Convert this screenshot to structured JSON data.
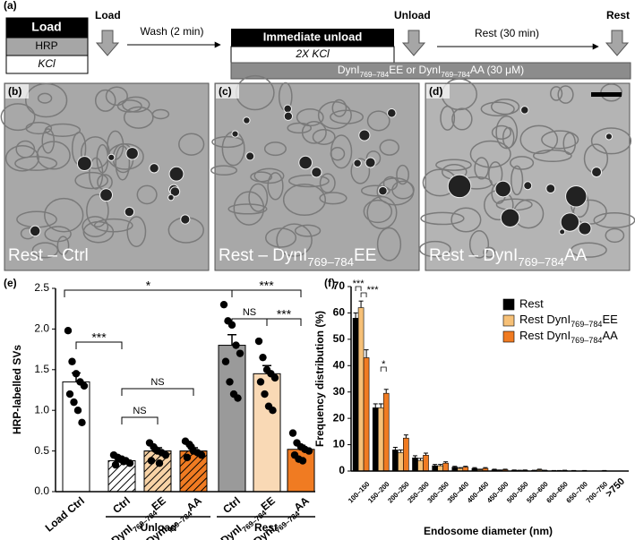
{
  "schematic": {
    "label": "(a)",
    "load_box": {
      "title": "Load",
      "rows": [
        "HRP",
        "KCl"
      ]
    },
    "load_step": "Load",
    "wash": "Wash (2 min)",
    "unload_box": {
      "title": "Immediate unload",
      "rows": [
        "2X KCl"
      ]
    },
    "unload_step": "Unload",
    "rest": "Rest (30 min)",
    "rest_step": "Rest",
    "treatment": "DynI769–784EE or DynI769–784AA (30 μM)"
  },
  "micrographs": [
    {
      "label": "(b)",
      "caption": "Rest – Ctrl"
    },
    {
      "label": "(c)",
      "caption": "Rest – DynI769–784EE"
    },
    {
      "label": "(d)",
      "caption": "Rest – DynI769–784AA"
    }
  ],
  "chart_data": [
    {
      "type": "bar",
      "label": "(e)",
      "ylabel": "HRP-labelled SVs",
      "categories": [
        "Load Ctrl",
        "Ctrl",
        "DynI769–784EE",
        "DynI769–784AA",
        "Ctrl",
        "DynI769–784EE",
        "DynI769–784AA"
      ],
      "colors": [
        "#ffffff",
        "#ffffff",
        "#f8d3a6",
        "#f07b22",
        "#9a9a9a",
        "#f9d9b5",
        "#f07b22"
      ],
      "hatched": [
        false,
        true,
        true,
        true,
        false,
        false,
        false
      ],
      "values": [
        1.35,
        0.38,
        0.5,
        0.5,
        1.8,
        1.45,
        0.52
      ],
      "errors": [
        0.11,
        0.03,
        0.04,
        0.04,
        0.13,
        0.1,
        0.05
      ],
      "points": [
        [
          1.98,
          1.6,
          1.45,
          1.35,
          1.3,
          1.2,
          1.1,
          1.0,
          0.85
        ],
        [
          0.45,
          0.42,
          0.4,
          0.38,
          0.35,
          0.33,
          0.4,
          0.37
        ],
        [
          0.6,
          0.55,
          0.5,
          0.48,
          0.45,
          0.38,
          0.52,
          0.35
        ],
        [
          0.62,
          0.58,
          0.5,
          0.48,
          0.45,
          0.42,
          0.55
        ],
        [
          2.3,
          2.1,
          2.05,
          1.8,
          1.7,
          1.6,
          1.35,
          1.2,
          1.15
        ],
        [
          1.85,
          1.65,
          1.5,
          1.45,
          1.4,
          1.35,
          1.2,
          1.05,
          1.0
        ],
        [
          0.72,
          0.6,
          0.55,
          0.52,
          0.5,
          0.45,
          0.4,
          0.38
        ]
      ],
      "groups": [
        "Unload",
        "Rest"
      ],
      "significance": [
        "***",
        "*",
        "***",
        "NS",
        "NS",
        "NS",
        "***"
      ],
      "ylim": [
        0,
        2.5
      ],
      "yticks": [
        {
          "value": 0,
          "label": "0.0"
        },
        0.5,
        {
          "value": 1,
          "label": "1.0"
        },
        1.5,
        {
          "value": 2,
          "label": "2.0"
        },
        2.5
      ]
    },
    {
      "type": "grouped_bar",
      "label": "(f)",
      "xlabel": "Endosome diameter (nm)",
      "ylabel": "Frequency distribution (%)",
      "categories": [
        "100–150",
        "150–200",
        "200–250",
        "250–300",
        "300–350",
        "350–400",
        "400–450",
        "450–500",
        "500–550",
        "550–600",
        "600–650",
        "650–700",
        "700–750",
        ">750"
      ],
      "series": [
        {
          "name": "Rest",
          "color": "#000000",
          "values": [
            58,
            24,
            8,
            5,
            2,
            1.5,
            1,
            0.5,
            0.3,
            0.2,
            0.1,
            0.1,
            0,
            0
          ],
          "errors": [
            2,
            1.5,
            1,
            0.8,
            0.5,
            0.3,
            0.3,
            0.2,
            0.1,
            0.1,
            0.1,
            0.1,
            0,
            0
          ]
        },
        {
          "name": "Rest DynI769–784EE",
          "color": "#f6c077",
          "values": [
            62,
            24,
            7,
            4,
            2,
            1,
            0.5,
            0.3,
            0.2,
            0.5,
            0.1,
            0,
            0,
            0
          ],
          "errors": [
            2.5,
            1.5,
            1,
            0.8,
            0.5,
            0.3,
            0.2,
            0.1,
            0.1,
            0.2,
            0.1,
            0,
            0,
            0
          ]
        },
        {
          "name": "Rest DynI769–784AA",
          "color": "#f07b22",
          "values": [
            43,
            29.5,
            12.5,
            6,
            3,
            1.5,
            1,
            0.5,
            0.3,
            0.2,
            0.2,
            0.1,
            0.1,
            0
          ],
          "errors": [
            3,
            1.5,
            1.2,
            0.8,
            0.5,
            0.3,
            0.3,
            0.2,
            0.1,
            0.1,
            0.1,
            0.1,
            0.1,
            0
          ]
        }
      ],
      "significance": [
        "***",
        "***",
        "*"
      ],
      "ylim": [
        0,
        70
      ],
      "yticks": [
        0,
        10,
        20,
        30,
        40,
        50,
        60,
        70
      ]
    }
  ]
}
